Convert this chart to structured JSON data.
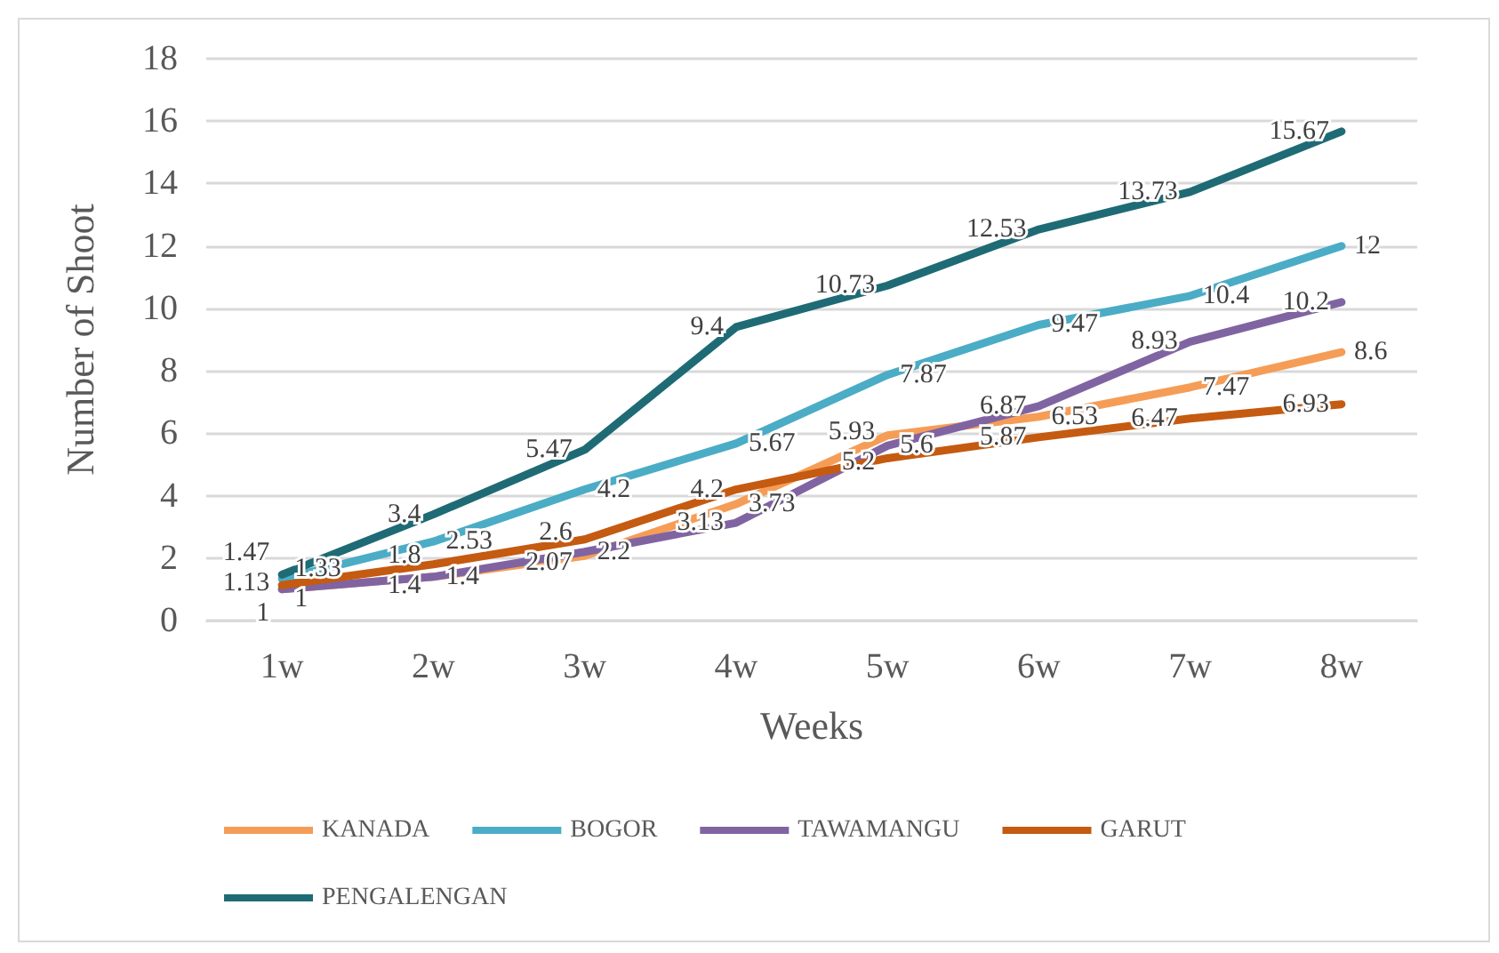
{
  "chart_data": {
    "type": "line",
    "xlabel": "Weeks",
    "ylabel": "Number of Shoot",
    "categories": [
      "1w",
      "2w",
      "3w",
      "4w",
      "5w",
      "6w",
      "7w",
      "8w"
    ],
    "series": [
      {
        "name": "KANADA",
        "color": "#f59d56",
        "values": [
          1,
          1.4,
          2.07,
          3.73,
          5.93,
          6.53,
          7.47,
          8.6
        ]
      },
      {
        "name": "BOGOR",
        "color": "#4bacc6",
        "values": [
          1.33,
          2.53,
          4.2,
          5.67,
          7.87,
          9.47,
          10.4,
          12
        ]
      },
      {
        "name": "TAWAMANGU",
        "color": "#8064a2",
        "values": [
          1,
          1.4,
          2.2,
          3.13,
          5.6,
          6.87,
          8.93,
          10.2
        ]
      },
      {
        "name": "GARUT",
        "color": "#c55a11",
        "values": [
          1.13,
          1.8,
          2.6,
          4.2,
          5.2,
          5.87,
          6.47,
          6.93
        ]
      },
      {
        "name": "PENGALENGAN",
        "color": "#1f6b75",
        "values": [
          1.47,
          3.4,
          5.47,
          9.4,
          10.73,
          12.53,
          13.73,
          15.67
        ]
      }
    ],
    "ylim": [
      0,
      18
    ],
    "yticks": [
      0,
      2,
      4,
      6,
      8,
      10,
      12,
      14,
      16,
      18
    ],
    "grid": "y",
    "legend": "bottom",
    "data_labels": true,
    "marker": "none",
    "line_style": "solid"
  }
}
